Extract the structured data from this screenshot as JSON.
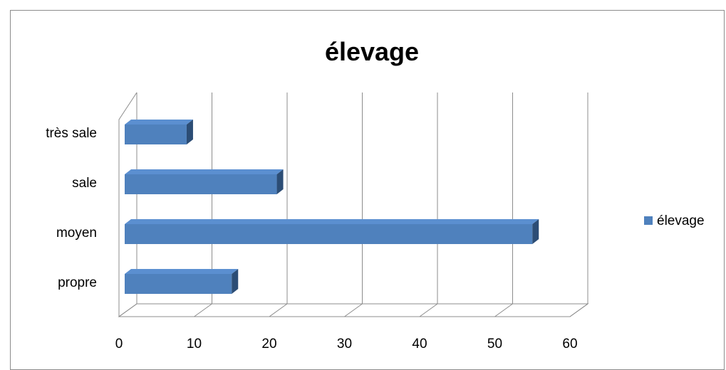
{
  "chart_data": {
    "type": "bar",
    "orientation": "horizontal",
    "three_d": true,
    "title": "élevage",
    "categories": [
      "propre",
      "moyen",
      "sale",
      "très sale"
    ],
    "series": [
      {
        "name": "élevage",
        "values": [
          15,
          55,
          21,
          9
        ],
        "color": "#4f81bd"
      }
    ],
    "xlim": [
      0,
      60
    ],
    "x_ticks": [
      0,
      10,
      20,
      30,
      40,
      50,
      60
    ],
    "grid": true,
    "legend_position": "right"
  }
}
